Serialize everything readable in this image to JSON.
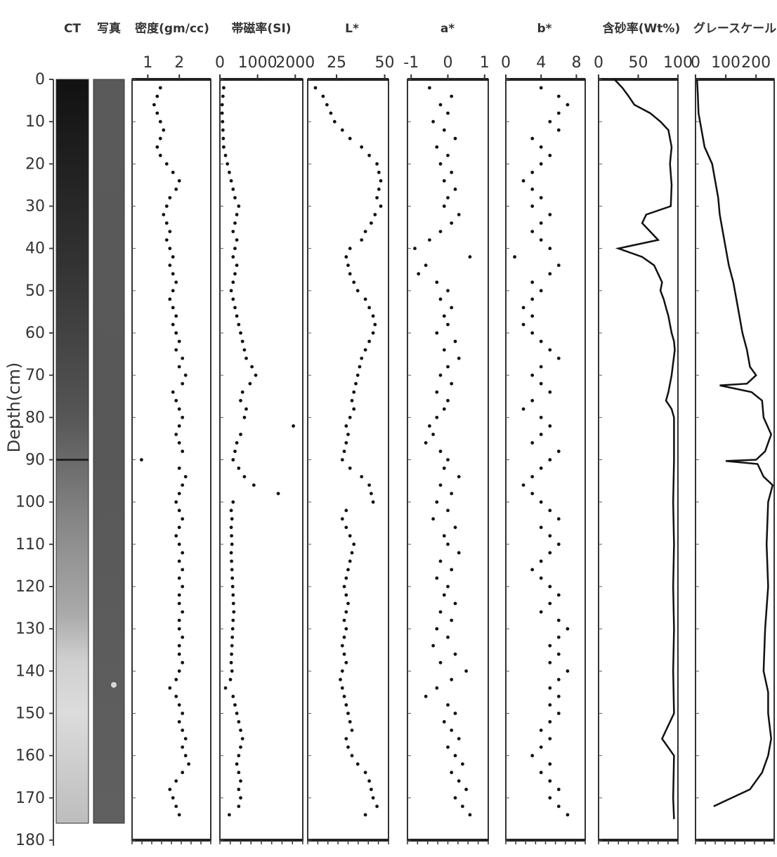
{
  "chart_data": {
    "type": "scatter",
    "depth_axis": {
      "label": "Depth(cm)",
      "range": [
        0,
        180
      ],
      "ticks": [
        0,
        10,
        20,
        30,
        40,
        50,
        60,
        70,
        80,
        90,
        100,
        110,
        120,
        130,
        140,
        150,
        160,
        170,
        180
      ],
      "reversed": true
    },
    "image_columns": [
      {
        "title": "CT",
        "core_top_depth": 0,
        "core_bottom_depth": 176
      },
      {
        "title": "写真",
        "core_top_depth": 0,
        "core_bottom_depth": 176
      }
    ],
    "panels": [
      {
        "title": "密度(gm/cc)",
        "xlim": [
          0.5,
          3.0
        ],
        "ticks": [
          1,
          2
        ],
        "tick_labels": [
          "1",
          "2"
        ],
        "style": "dots",
        "depth": [
          2,
          4,
          6,
          8,
          10,
          12,
          14,
          16,
          18,
          20,
          22,
          24,
          26,
          28,
          30,
          32,
          34,
          36,
          38,
          40,
          42,
          44,
          46,
          48,
          50,
          52,
          54,
          56,
          58,
          60,
          62,
          64,
          66,
          68,
          70,
          72,
          74,
          76,
          78,
          80,
          82,
          84,
          86,
          88,
          90,
          92,
          94,
          96,
          98,
          100,
          102,
          104,
          106,
          108,
          110,
          112,
          114,
          116,
          118,
          120,
          122,
          124,
          126,
          128,
          130,
          132,
          134,
          136,
          138,
          140,
          142,
          144,
          146,
          148,
          150,
          152,
          154,
          156,
          158,
          160,
          162,
          164,
          166,
          168,
          170,
          172,
          174
        ],
        "values": [
          1.4,
          1.3,
          1.2,
          1.3,
          1.4,
          1.5,
          1.4,
          1.3,
          1.4,
          1.6,
          1.8,
          2.0,
          1.9,
          1.7,
          1.6,
          1.5,
          1.6,
          1.7,
          1.6,
          1.7,
          1.8,
          1.7,
          1.8,
          1.9,
          1.8,
          1.7,
          1.8,
          1.9,
          1.8,
          1.9,
          2.0,
          1.9,
          2.1,
          2.0,
          2.2,
          2.1,
          1.8,
          1.9,
          2.0,
          2.1,
          2.0,
          1.9,
          2.0,
          2.1,
          0.8,
          2.0,
          2.2,
          2.1,
          2.0,
          1.9,
          2.0,
          2.1,
          2.0,
          1.9,
          2.0,
          2.1,
          2.0,
          2.1,
          2.0,
          2.1,
          2.0,
          2.0,
          2.1,
          2.0,
          2.0,
          2.1,
          2.0,
          2.0,
          2.1,
          2.0,
          1.9,
          1.7,
          1.9,
          2.0,
          2.1,
          2.0,
          2.1,
          2.2,
          2.1,
          2.2,
          2.3,
          2.1,
          1.9,
          1.7,
          1.8,
          1.9,
          2.0
        ]
      },
      {
        "title": "帯磁率(SI)",
        "xlim": [
          0,
          2200
        ],
        "ticks": [
          0,
          1000,
          2000
        ],
        "tick_labels": [
          "0",
          "1000",
          "2000"
        ],
        "style": "dots",
        "depth": [
          2,
          4,
          6,
          8,
          10,
          12,
          14,
          16,
          18,
          20,
          22,
          24,
          26,
          28,
          30,
          32,
          34,
          36,
          38,
          40,
          42,
          44,
          46,
          48,
          50,
          52,
          54,
          56,
          58,
          60,
          62,
          64,
          66,
          68,
          70,
          72,
          74,
          76,
          78,
          80,
          82,
          84,
          86,
          88,
          90,
          92,
          94,
          96,
          98,
          100,
          102,
          104,
          106,
          108,
          110,
          112,
          114,
          116,
          118,
          120,
          122,
          124,
          126,
          128,
          130,
          132,
          134,
          136,
          138,
          140,
          142,
          144,
          146,
          148,
          150,
          152,
          154,
          156,
          158,
          160,
          162,
          164,
          166,
          168,
          170,
          172,
          174
        ],
        "values": [
          100,
          80,
          60,
          60,
          70,
          80,
          90,
          100,
          150,
          200,
          250,
          300,
          350,
          400,
          500,
          450,
          400,
          350,
          450,
          400,
          350,
          450,
          400,
          350,
          300,
          350,
          400,
          450,
          500,
          550,
          600,
          650,
          700,
          850,
          950,
          800,
          600,
          550,
          700,
          650,
          1950,
          550,
          450,
          400,
          350,
          500,
          650,
          900,
          1550,
          350,
          300,
          320,
          300,
          310,
          320,
          300,
          310,
          320,
          330,
          340,
          350,
          360,
          370,
          350,
          340,
          330,
          320,
          310,
          300,
          320,
          280,
          150,
          350,
          400,
          450,
          500,
          550,
          600,
          550,
          500,
          450,
          500,
          550,
          500,
          550,
          500,
          250
        ]
      },
      {
        "title": "L*",
        "xlim": [
          10,
          52
        ],
        "ticks": [
          25,
          50
        ],
        "tick_labels": [
          "25",
          "50"
        ],
        "style": "dots",
        "depth": [
          2,
          4,
          6,
          8,
          10,
          12,
          14,
          16,
          18,
          20,
          22,
          24,
          26,
          28,
          30,
          32,
          34,
          36,
          38,
          40,
          42,
          44,
          46,
          48,
          50,
          52,
          54,
          56,
          58,
          60,
          62,
          64,
          66,
          68,
          70,
          72,
          74,
          76,
          78,
          80,
          82,
          84,
          86,
          88,
          90,
          92,
          94,
          96,
          98,
          100,
          102,
          104,
          106,
          108,
          110,
          112,
          114,
          116,
          118,
          120,
          122,
          124,
          126,
          128,
          130,
          132,
          134,
          136,
          138,
          140,
          142,
          144,
          146,
          148,
          150,
          152,
          154,
          156,
          158,
          160,
          162,
          164,
          166,
          168,
          170,
          172,
          174
        ],
        "values": [
          14,
          18,
          20,
          22,
          24,
          28,
          32,
          38,
          42,
          46,
          47,
          48,
          47,
          46,
          48,
          45,
          43,
          40,
          38,
          32,
          30,
          31,
          32,
          34,
          36,
          40,
          42,
          44,
          45,
          44,
          42,
          40,
          38,
          37,
          36,
          35,
          34,
          33,
          34,
          32,
          30,
          31,
          30,
          29,
          28,
          32,
          38,
          42,
          43,
          44,
          30,
          28,
          30,
          32,
          34,
          33,
          32,
          31,
          30,
          29,
          30,
          31,
          30,
          29,
          30,
          29,
          28,
          29,
          30,
          28,
          27,
          28,
          29,
          30,
          31,
          32,
          33,
          30,
          31,
          33,
          36,
          40,
          42,
          43,
          44,
          46,
          40
        ]
      },
      {
        "title": "a*",
        "xlim": [
          -1.1,
          1.1
        ],
        "ticks": [
          -1,
          0,
          1
        ],
        "tick_labels": [
          "-1",
          "0",
          "1"
        ],
        "style": "dots",
        "depth": [
          2,
          4,
          6,
          8,
          10,
          12,
          14,
          16,
          18,
          20,
          22,
          24,
          26,
          28,
          30,
          32,
          34,
          36,
          38,
          40,
          42,
          44,
          46,
          48,
          50,
          52,
          54,
          56,
          58,
          60,
          62,
          64,
          66,
          68,
          70,
          72,
          74,
          76,
          78,
          80,
          82,
          84,
          86,
          88,
          90,
          92,
          94,
          96,
          98,
          100,
          102,
          104,
          106,
          108,
          110,
          112,
          114,
          116,
          118,
          120,
          122,
          124,
          126,
          128,
          130,
          132,
          134,
          136,
          138,
          140,
          142,
          144,
          146,
          148,
          150,
          152,
          154,
          156,
          158,
          160,
          162,
          164,
          166,
          168,
          170,
          172,
          174
        ],
        "values": [
          -0.5,
          0.1,
          -0.2,
          0.0,
          -0.4,
          -0.1,
          0.2,
          -0.3,
          0.0,
          -0.2,
          0.1,
          -0.1,
          0.2,
          0.0,
          -0.1,
          0.3,
          0.1,
          -0.2,
          -0.5,
          -0.9,
          0.6,
          -0.6,
          -0.8,
          -0.3,
          0.0,
          -0.2,
          0.1,
          -0.1,
          0.0,
          -0.3,
          0.2,
          -0.1,
          0.3,
          0.0,
          -0.2,
          0.1,
          -0.3,
          0.0,
          -0.1,
          -0.3,
          -0.5,
          -0.4,
          -0.6,
          -0.2,
          0.0,
          -0.1,
          0.3,
          -0.2,
          0.1,
          -0.3,
          0.0,
          -0.4,
          0.2,
          -0.1,
          0.0,
          0.3,
          -0.2,
          0.1,
          -0.3,
          0.0,
          -0.1,
          0.2,
          -0.2,
          0.1,
          -0.3,
          0.0,
          -0.4,
          0.2,
          -0.2,
          0.5,
          0.1,
          -0.3,
          -0.6,
          0.0,
          0.2,
          -0.1,
          0.1,
          0.3,
          0.0,
          0.2,
          0.4,
          0.1,
          0.3,
          0.5,
          0.2,
          0.4,
          0.6
        ]
      },
      {
        "title": "b*",
        "xlim": [
          0,
          9
        ],
        "ticks": [
          0,
          4,
          8
        ],
        "tick_labels": [
          "0",
          "4",
          "8"
        ],
        "style": "dots",
        "depth": [
          2,
          4,
          6,
          8,
          10,
          12,
          14,
          16,
          18,
          20,
          22,
          24,
          26,
          28,
          30,
          32,
          34,
          36,
          38,
          40,
          42,
          44,
          46,
          48,
          50,
          52,
          54,
          56,
          58,
          60,
          62,
          64,
          66,
          68,
          70,
          72,
          74,
          76,
          78,
          80,
          82,
          84,
          86,
          88,
          90,
          92,
          94,
          96,
          98,
          100,
          102,
          104,
          106,
          108,
          110,
          112,
          114,
          116,
          118,
          120,
          122,
          124,
          126,
          128,
          130,
          132,
          134,
          136,
          138,
          140,
          142,
          144,
          146,
          148,
          150,
          152,
          154,
          156,
          158,
          160,
          162,
          164,
          166,
          168,
          170,
          172,
          174
        ],
        "values": [
          4,
          6,
          7,
          6,
          5,
          6,
          3,
          4,
          5,
          4,
          3,
          2,
          3,
          4,
          3,
          5,
          4,
          3,
          4,
          5,
          1,
          6,
          5,
          3,
          4,
          3,
          2,
          3,
          2,
          3,
          4,
          5,
          6,
          4,
          3,
          4,
          5,
          3,
          2,
          4,
          5,
          4,
          3,
          6,
          5,
          4,
          3,
          2,
          3,
          4,
          5,
          6,
          4,
          5,
          6,
          5,
          4,
          3,
          4,
          5,
          6,
          5,
          4,
          6,
          7,
          6,
          5,
          6,
          5,
          7,
          6,
          5,
          6,
          5,
          6,
          5,
          4,
          5,
          4,
          3,
          5,
          4,
          5,
          6,
          5,
          6,
          7
        ]
      },
      {
        "title": "含砂率(Wt%)",
        "xlim": [
          0,
          100
        ],
        "ticks": [
          0,
          50,
          100
        ],
        "tick_labels": [
          "0",
          "50",
          "100"
        ],
        "style": "line",
        "depth": [
          0,
          2,
          4,
          6,
          8,
          10,
          12,
          14,
          16,
          18,
          20,
          25,
          30,
          32,
          34,
          36,
          38,
          40,
          42,
          44,
          46,
          48,
          50,
          52,
          54,
          56,
          58,
          60,
          62,
          64,
          70,
          72,
          74,
          76,
          78,
          80,
          90,
          100,
          110,
          120,
          130,
          140,
          150,
          156,
          160,
          170,
          175
        ],
        "values": [
          20,
          30,
          38,
          45,
          65,
          78,
          88,
          90,
          92,
          91,
          90,
          92,
          91,
          60,
          55,
          65,
          75,
          25,
          55,
          70,
          75,
          80,
          78,
          82,
          85,
          88,
          90,
          92,
          95,
          96,
          92,
          90,
          88,
          85,
          92,
          95,
          95,
          94,
          95,
          94,
          95,
          94,
          95,
          80,
          95,
          94,
          95
        ]
      },
      {
        "title": "グレースケール",
        "xlim": [
          0,
          260
        ],
        "ticks": [
          0,
          100,
          200
        ],
        "tick_labels": [
          "0",
          "100",
          "200"
        ],
        "style": "line",
        "depth": [
          0,
          4,
          8,
          12,
          16,
          20,
          24,
          28,
          32,
          36,
          40,
          44,
          48,
          52,
          56,
          60,
          64,
          68,
          70,
          72,
          72.4,
          74,
          76,
          80,
          84,
          88,
          90,
          90.3,
          91,
          94,
          96,
          100,
          110,
          120,
          130,
          140,
          145,
          150,
          156,
          160,
          164,
          168,
          170,
          171,
          172
        ],
        "values": [
          5,
          8,
          10,
          20,
          30,
          55,
          65,
          75,
          80,
          90,
          100,
          110,
          125,
          135,
          145,
          155,
          170,
          180,
          200,
          170,
          80,
          185,
          220,
          225,
          250,
          230,
          200,
          100,
          205,
          225,
          255,
          240,
          235,
          240,
          230,
          225,
          240,
          240,
          250,
          240,
          220,
          180,
          120,
          90,
          60
        ]
      }
    ]
  }
}
